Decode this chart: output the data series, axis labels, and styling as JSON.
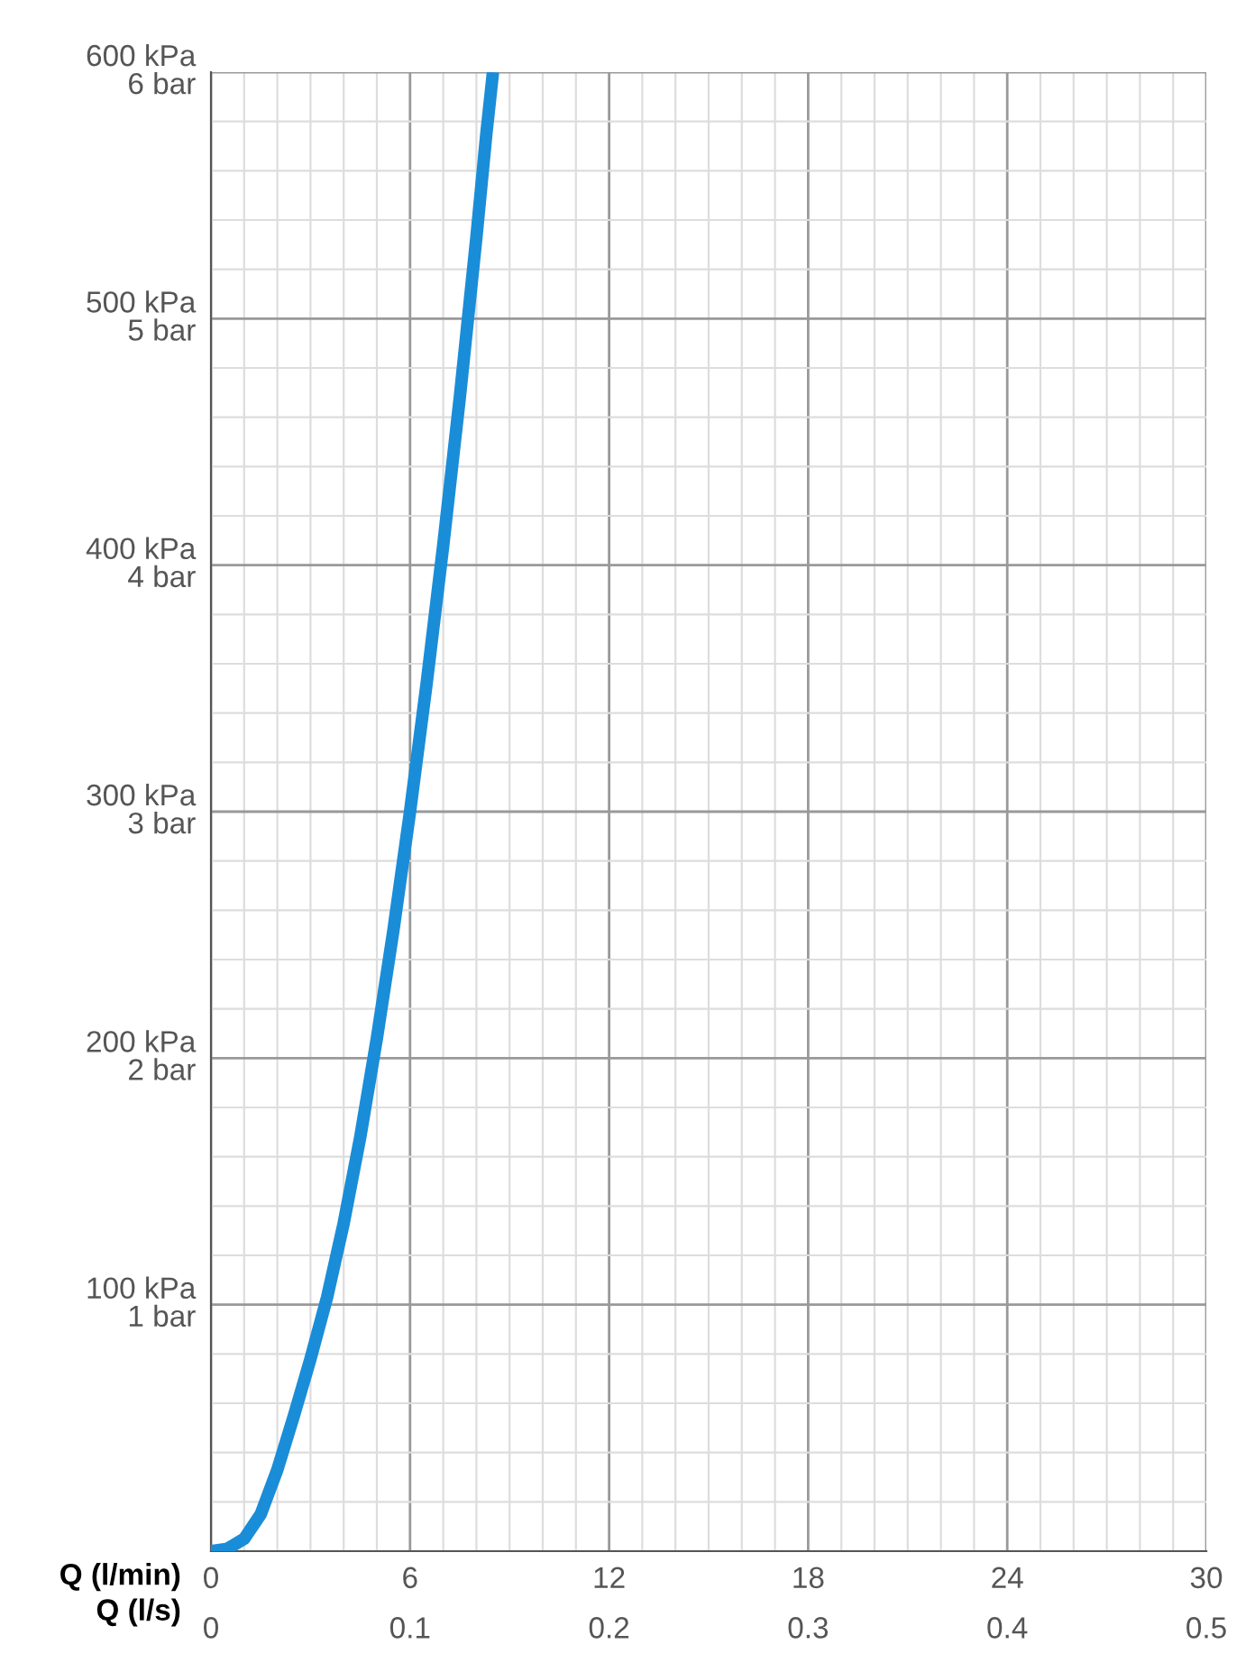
{
  "chart_data": {
    "type": "line",
    "xlabel": "Q (l/min)",
    "x2label": "Q (l/s)",
    "series": [
      {
        "color": "#1a8dd8",
        "x": [
          0,
          0.5,
          1,
          1.5,
          2,
          2.5,
          3,
          3.5,
          4,
          4.5,
          5,
          5.5,
          6,
          6.5,
          7,
          7.5,
          8,
          8.3,
          8.5
        ],
        "values": [
          0,
          1,
          5,
          15,
          33,
          55,
          78,
          103,
          133,
          168,
          208,
          252,
          300,
          352,
          408,
          468,
          533,
          575,
          600
        ]
      }
    ],
    "xlim": [
      0,
      30
    ],
    "ylim": [
      0,
      600
    ],
    "x2lim": [
      0,
      0.5
    ],
    "xticks": [
      0,
      {
        "value": 1,
        "label": null
      },
      {
        "value": 2,
        "label": null
      },
      {
        "value": 3,
        "label": null
      },
      {
        "value": 4,
        "label": null
      },
      {
        "value": 5,
        "label": null
      },
      6,
      {
        "value": 7,
        "label": null
      },
      {
        "value": 8,
        "label": null
      },
      {
        "value": 9,
        "label": null
      },
      {
        "value": 10,
        "label": null
      },
      {
        "value": 11,
        "label": null
      },
      12,
      {
        "value": 13,
        "label": null
      },
      {
        "value": 14,
        "label": null
      },
      {
        "value": 15,
        "label": null
      },
      {
        "value": 16,
        "label": null
      },
      {
        "value": 17,
        "label": null
      },
      18,
      {
        "value": 19,
        "label": null
      },
      {
        "value": 20,
        "label": null
      },
      {
        "value": 21,
        "label": null
      },
      {
        "value": 22,
        "label": null
      },
      {
        "value": 23,
        "label": null
      },
      24,
      {
        "value": 25,
        "label": null
      },
      {
        "value": 26,
        "label": null
      },
      {
        "value": 27,
        "label": null
      },
      {
        "value": 28,
        "label": null
      },
      {
        "value": 29,
        "label": null
      },
      30
    ],
    "x2ticks": [
      0,
      0.1,
      0.2,
      0.3,
      0.4,
      0.5
    ],
    "yticks": [
      {
        "value": 20,
        "label": null
      },
      {
        "value": 40,
        "label": null
      },
      {
        "value": 60,
        "label": null
      },
      {
        "value": 80,
        "label": null
      },
      {
        "value": 100,
        "label": "100 kPa"
      },
      {
        "value": 120,
        "label": null
      },
      {
        "value": 140,
        "label": null
      },
      {
        "value": 160,
        "label": null
      },
      {
        "value": 180,
        "label": null
      },
      {
        "value": 200,
        "label": "200 kPa"
      },
      {
        "value": 220,
        "label": null
      },
      {
        "value": 240,
        "label": null
      },
      {
        "value": 260,
        "label": null
      },
      {
        "value": 280,
        "label": null
      },
      {
        "value": 300,
        "label": "300 kPa"
      },
      {
        "value": 320,
        "label": null
      },
      {
        "value": 340,
        "label": null
      },
      {
        "value": 360,
        "label": null
      },
      {
        "value": 380,
        "label": null
      },
      {
        "value": 400,
        "label": "400 kPa"
      },
      {
        "value": 420,
        "label": null
      },
      {
        "value": 440,
        "label": null
      },
      {
        "value": 460,
        "label": null
      },
      {
        "value": 480,
        "label": null
      },
      {
        "value": 500,
        "label": "500 kPa"
      },
      {
        "value": 520,
        "label": null
      },
      {
        "value": 540,
        "label": null
      },
      {
        "value": 560,
        "label": null
      },
      {
        "value": 580,
        "label": null
      },
      {
        "value": 600,
        "label": "600 kPa"
      }
    ],
    "y2lim": [
      0,
      6
    ],
    "y2ticks": [
      {
        "value": 1,
        "label": "1 bar"
      },
      {
        "value": 2,
        "label": "2 bar"
      },
      {
        "value": 3,
        "label": "3 bar"
      },
      {
        "value": 4,
        "label": "4 bar"
      },
      {
        "value": 5,
        "label": "5 bar"
      },
      {
        "value": 6,
        "label": "6 bar"
      }
    ],
    "grid": true,
    "line_style": "solid",
    "marker": "none"
  }
}
